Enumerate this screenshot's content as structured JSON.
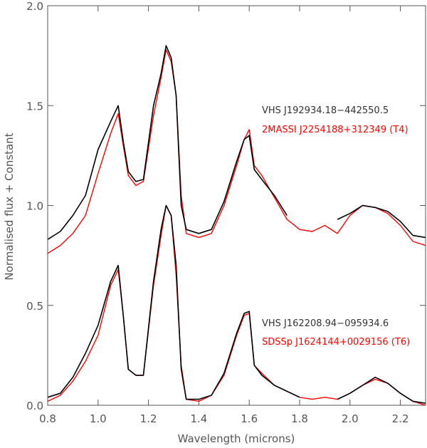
{
  "chart_data": {
    "type": "line",
    "title": "",
    "xlabel": "Wavelength (microns)",
    "ylabel": "Normalised flux + Constant",
    "xlim": [
      0.8,
      2.3
    ],
    "ylim": [
      0.0,
      2.0
    ],
    "xticks": [
      0.8,
      1.0,
      1.2,
      1.4,
      1.6,
      1.8,
      2.0,
      2.2
    ],
    "xtick_labels": [
      "0.8",
      "1.0",
      "1.2",
      "1.4",
      "1.6",
      "1.8",
      "2.0",
      "2.2"
    ],
    "yticks": [
      0.0,
      0.5,
      1.0,
      1.5,
      2.0
    ],
    "ytick_labels": [
      "0.0",
      "0.5",
      "1.0",
      "1.5",
      "2.0"
    ],
    "grid": false,
    "annotations": [
      {
        "text": "VHS J192934.18−442550.5",
        "color": "#333333"
      },
      {
        "text": "2MASSI J2254188+312349 (T4)",
        "color": "#ff0000"
      },
      {
        "text": "VHS J162208.94−095934.6",
        "color": "#333333"
      },
      {
        "text": "SDSSp J1624144+0029156 (T6)",
        "color": "#ff0000"
      }
    ],
    "series": [
      {
        "color": "#ff0000",
        "x": [
          0.8,
          0.85,
          0.9,
          0.95,
          1.0,
          1.05,
          1.08,
          1.1,
          1.12,
          1.15,
          1.18,
          1.22,
          1.25,
          1.27,
          1.29,
          1.31,
          1.33,
          1.35,
          1.4,
          1.45,
          1.5,
          1.55,
          1.58,
          1.6,
          1.62,
          1.65,
          1.7,
          1.75,
          1.8,
          1.85,
          1.9,
          1.95,
          2.0,
          2.05,
          2.1,
          2.15,
          2.2,
          2.25,
          2.3
        ],
        "values": [
          0.76,
          0.8,
          0.86,
          0.95,
          1.16,
          1.36,
          1.46,
          1.3,
          1.15,
          1.1,
          1.12,
          1.45,
          1.64,
          1.78,
          1.72,
          1.55,
          1.05,
          0.86,
          0.84,
          0.86,
          1.0,
          1.2,
          1.33,
          1.38,
          1.2,
          1.15,
          1.04,
          0.93,
          0.88,
          0.87,
          0.9,
          0.86,
          0.95,
          1.0,
          0.99,
          0.96,
          0.9,
          0.82,
          0.8
        ]
      },
      {
        "color": "#000000",
        "x": [
          0.8,
          0.85,
          0.9,
          0.95,
          1.0,
          1.05,
          1.08,
          1.1,
          1.12,
          1.15,
          1.18,
          1.22,
          1.25,
          1.27,
          1.29,
          1.31,
          1.33,
          1.35,
          1.4,
          1.45,
          1.5,
          1.55,
          1.58,
          1.6,
          1.62,
          1.65,
          1.7,
          1.75,
          1.8,
          1.85,
          1.9,
          1.95,
          2.0,
          2.05,
          2.1,
          2.15,
          2.2,
          2.25,
          2.3
        ],
        "values": [
          0.83,
          0.87,
          0.95,
          1.05,
          1.28,
          1.42,
          1.5,
          1.32,
          1.17,
          1.12,
          1.13,
          1.5,
          1.66,
          1.8,
          1.74,
          1.55,
          1.0,
          0.88,
          0.86,
          0.88,
          1.02,
          1.22,
          1.33,
          1.35,
          1.18,
          1.13,
          1.05,
          0.95,
          null,
          null,
          null,
          0.93,
          0.96,
          1.0,
          0.99,
          0.97,
          0.92,
          0.85,
          0.84
        ]
      },
      {
        "color": "#ff0000",
        "x": [
          0.8,
          0.85,
          0.9,
          0.95,
          1.0,
          1.05,
          1.08,
          1.1,
          1.12,
          1.15,
          1.18,
          1.22,
          1.25,
          1.27,
          1.29,
          1.31,
          1.33,
          1.35,
          1.4,
          1.45,
          1.5,
          1.55,
          1.58,
          1.6,
          1.62,
          1.65,
          1.7,
          1.75,
          1.8,
          1.85,
          1.9,
          1.95,
          2.0,
          2.05,
          2.1,
          2.15,
          2.2,
          2.25,
          2.3
        ],
        "values": [
          0.02,
          0.05,
          0.12,
          0.22,
          0.35,
          0.6,
          0.68,
          0.45,
          0.18,
          0.15,
          0.15,
          0.6,
          0.85,
          1.0,
          0.95,
          0.65,
          0.2,
          0.03,
          0.02,
          0.05,
          0.15,
          0.35,
          0.45,
          0.46,
          0.2,
          0.16,
          0.1,
          0.07,
          0.04,
          0.03,
          0.04,
          0.03,
          0.06,
          0.1,
          0.13,
          0.11,
          0.06,
          0.02,
          0.0
        ]
      },
      {
        "color": "#000000",
        "x": [
          0.8,
          0.85,
          0.9,
          0.95,
          1.0,
          1.05,
          1.08,
          1.1,
          1.12,
          1.15,
          1.18,
          1.22,
          1.25,
          1.27,
          1.29,
          1.31,
          1.33,
          1.35,
          1.4,
          1.45,
          1.5,
          1.55,
          1.58,
          1.6,
          1.62,
          1.65,
          1.7,
          1.75,
          1.8,
          1.85,
          1.9,
          1.95,
          2.0,
          2.05,
          2.1,
          2.15,
          2.2,
          2.25,
          2.3
        ],
        "values": [
          0.04,
          0.06,
          0.14,
          0.26,
          0.4,
          0.62,
          0.7,
          0.45,
          0.18,
          0.15,
          0.15,
          0.62,
          0.88,
          1.0,
          0.95,
          0.7,
          0.18,
          0.03,
          0.03,
          0.05,
          0.16,
          0.36,
          0.46,
          0.47,
          0.2,
          0.15,
          0.1,
          0.07,
          0.04,
          null,
          null,
          0.03,
          0.06,
          0.1,
          0.14,
          0.11,
          0.06,
          0.02,
          0.01
        ]
      }
    ]
  }
}
